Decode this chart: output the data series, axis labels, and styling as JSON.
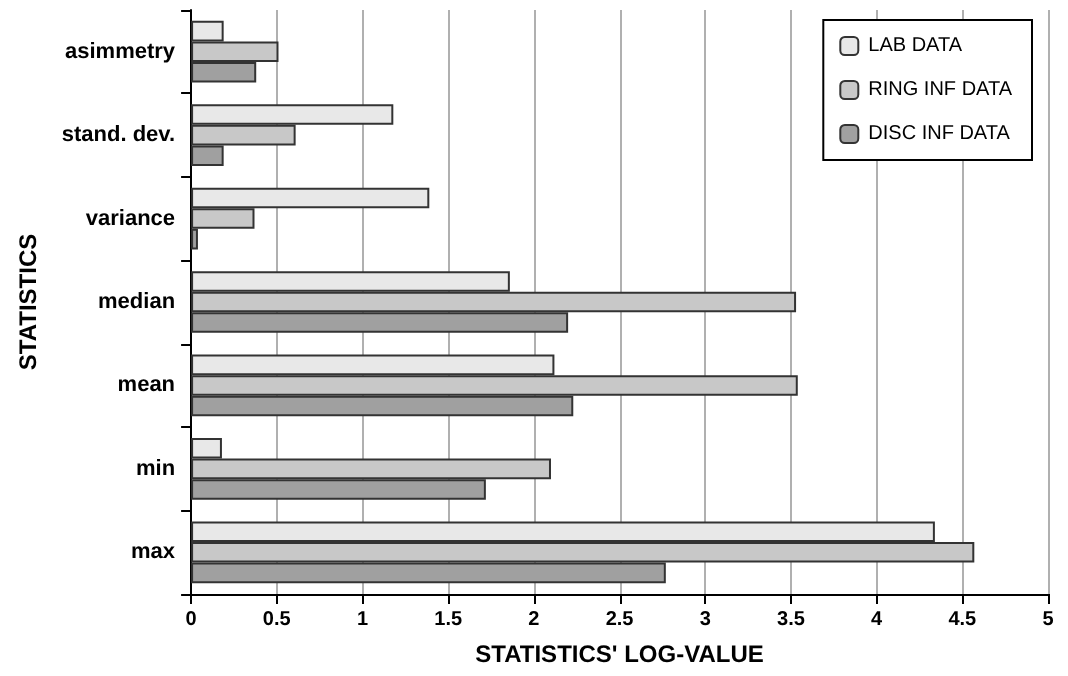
{
  "chart_data": {
    "type": "bar",
    "orientation": "horizontal",
    "xlabel": "STATISTICS' LOG-VALUE",
    "ylabel": "STATISTICS",
    "categories": [
      "asimmetry",
      "stand. dev.",
      "variance",
      "median",
      "mean",
      "min",
      "max"
    ],
    "series": [
      {
        "name": "LAB DATA",
        "color": "#e8e8e8",
        "values": [
          0.19,
          1.18,
          1.39,
          1.86,
          2.12,
          0.18,
          4.34
        ]
      },
      {
        "name": "RING INF DATA",
        "color": "#c8c8c8",
        "values": [
          0.51,
          0.61,
          0.37,
          3.53,
          3.54,
          2.1,
          4.57
        ]
      },
      {
        "name": "DISC INF DATA",
        "color": "#a0a0a0",
        "values": [
          0.38,
          0.19,
          0.04,
          2.2,
          2.23,
          1.72,
          2.77
        ]
      }
    ],
    "xlim": [
      0,
      5
    ],
    "xticks": [
      0,
      0.5,
      1,
      1.5,
      2,
      2.5,
      3,
      3.5,
      4,
      4.5,
      5
    ],
    "grid": "x",
    "legend": "top right"
  }
}
